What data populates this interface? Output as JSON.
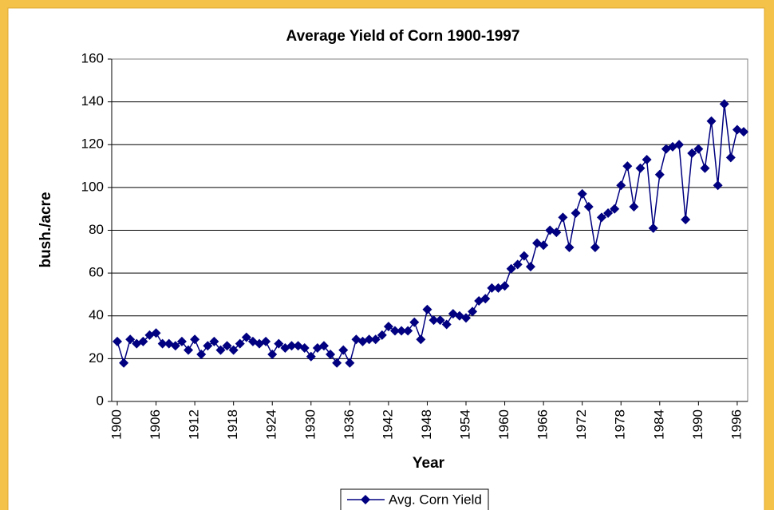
{
  "chart_data": {
    "type": "line",
    "title": "Average Yield of Corn 1900-1997",
    "x_label": "Year",
    "y_label": "bush./acre",
    "x": [
      1900,
      1901,
      1902,
      1903,
      1904,
      1905,
      1906,
      1907,
      1908,
      1909,
      1910,
      1911,
      1912,
      1913,
      1914,
      1915,
      1916,
      1917,
      1918,
      1919,
      1920,
      1921,
      1922,
      1923,
      1924,
      1925,
      1926,
      1927,
      1928,
      1929,
      1930,
      1931,
      1932,
      1933,
      1934,
      1935,
      1936,
      1937,
      1938,
      1939,
      1940,
      1941,
      1942,
      1943,
      1944,
      1945,
      1946,
      1947,
      1948,
      1949,
      1950,
      1951,
      1952,
      1953,
      1954,
      1955,
      1956,
      1957,
      1958,
      1959,
      1960,
      1961,
      1962,
      1963,
      1964,
      1965,
      1966,
      1967,
      1968,
      1969,
      1970,
      1971,
      1972,
      1973,
      1974,
      1975,
      1976,
      1977,
      1978,
      1979,
      1980,
      1981,
      1982,
      1983,
      1984,
      1985,
      1986,
      1987,
      1988,
      1989,
      1990,
      1991,
      1992,
      1993,
      1994,
      1995,
      1996,
      1997
    ],
    "series": [
      {
        "name": "Avg. Corn Yield",
        "color": "#000080",
        "values": [
          28,
          18,
          29,
          27,
          28,
          31,
          32,
          27,
          27,
          26,
          28,
          24,
          29,
          22,
          26,
          28,
          24,
          26,
          24,
          27,
          30,
          28,
          27,
          28,
          22,
          27,
          25,
          26,
          26,
          25,
          21,
          25,
          26,
          22,
          18,
          24,
          18,
          29,
          28,
          29,
          29,
          31,
          35,
          33,
          33,
          33,
          37,
          29,
          43,
          38,
          38,
          36,
          41,
          40,
          39,
          42,
          47,
          48,
          53,
          53,
          54,
          62,
          64,
          68,
          63,
          74,
          73,
          80,
          79,
          86,
          72,
          88,
          97,
          91,
          72,
          86,
          88,
          90,
          101,
          110,
          91,
          109,
          113,
          81,
          106,
          118,
          119,
          120,
          85,
          116,
          118,
          109,
          131,
          101,
          139,
          114,
          127,
          126
        ]
      }
    ],
    "xlim": [
      1900,
      1997
    ],
    "xticks": [
      1900,
      1906,
      1912,
      1918,
      1924,
      1930,
      1936,
      1942,
      1948,
      1954,
      1960,
      1966,
      1972,
      1978,
      1984,
      1990,
      1996
    ],
    "ylim": [
      0,
      160
    ],
    "yticks": [
      0,
      20,
      40,
      60,
      80,
      100,
      120,
      140,
      160
    ],
    "grid": true,
    "legend": "bottom"
  }
}
